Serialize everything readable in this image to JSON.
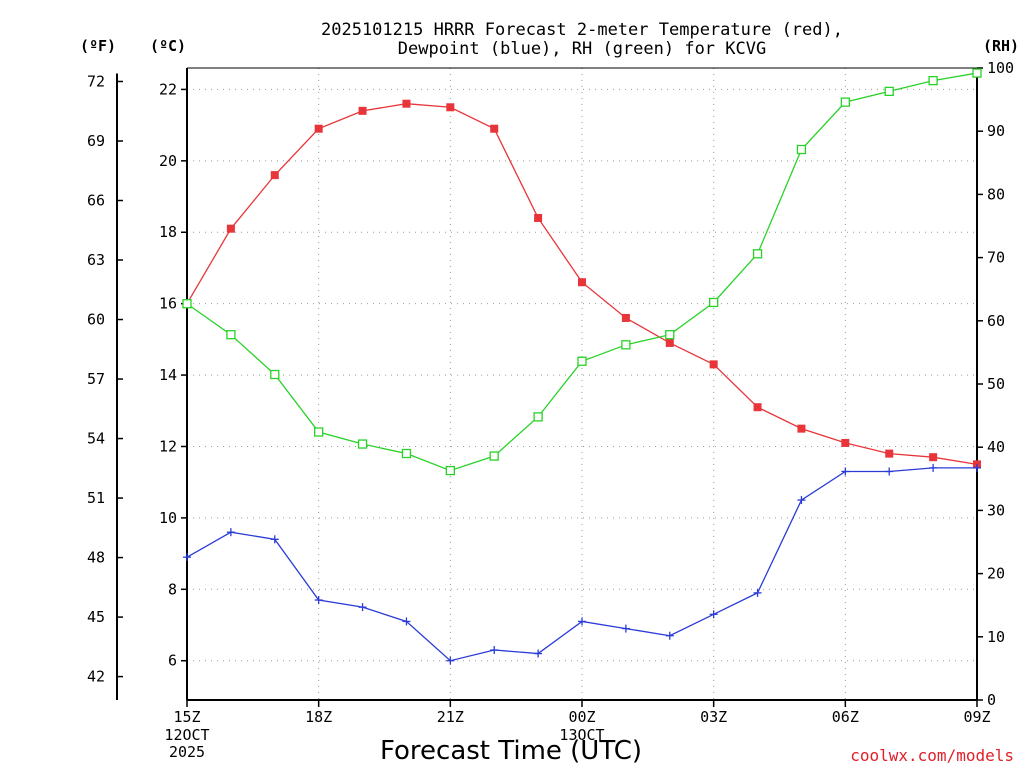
{
  "chart_data": {
    "type": "line",
    "title": [
      "2025101215 HRRR Forecast 2-meter Temperature (red),",
      "Dewpoint (blue), RH (green) for KCVG"
    ],
    "xlabel": "Forecast Time (UTC)",
    "credit": "coolwx.com/models",
    "units": {
      "fahrenheit": "(ºF)",
      "celsius": "(ºC)",
      "rh": "(RH)"
    },
    "x_ticks": [
      {
        "hour": 0,
        "label": "15Z",
        "sub": [
          "12OCT",
          "2025"
        ]
      },
      {
        "hour": 3,
        "label": "18Z",
        "sub": []
      },
      {
        "hour": 6,
        "label": "21Z",
        "sub": []
      },
      {
        "hour": 9,
        "label": "00Z",
        "sub": [
          "13OCT"
        ]
      },
      {
        "hour": 12,
        "label": "03Z",
        "sub": []
      },
      {
        "hour": 15,
        "label": "06Z",
        "sub": []
      },
      {
        "hour": 18,
        "label": "09Z",
        "sub": []
      }
    ],
    "xlim": [
      0,
      18
    ],
    "celsius_ticks": [
      6,
      8,
      10,
      12,
      14,
      16,
      18,
      20,
      22
    ],
    "fahrenheit_ticks": [
      42,
      45,
      48,
      51,
      54,
      57,
      60,
      63,
      66,
      69,
      72
    ],
    "rh_ticks": [
      0,
      10,
      20,
      30,
      40,
      50,
      60,
      70,
      80,
      90,
      100
    ],
    "ylim_celsius": [
      4.9,
      22.6
    ],
    "ylim_rh": [
      0,
      100
    ],
    "series": [
      {
        "name": "Temperature",
        "color": "#e8353a",
        "axis": "celsius",
        "marker": "filled-square",
        "values": [
          16.0,
          18.1,
          19.6,
          20.9,
          21.4,
          21.6,
          21.5,
          20.9,
          18.4,
          16.6,
          15.6,
          14.9,
          14.3,
          13.1,
          12.5,
          12.1,
          11.8,
          11.7,
          11.5
        ]
      },
      {
        "name": "Dewpoint",
        "color": "#2a3bd8",
        "axis": "celsius",
        "marker": "plus",
        "values": [
          8.9,
          9.6,
          9.4,
          7.7,
          7.5,
          7.1,
          6.0,
          6.3,
          6.2,
          7.1,
          6.9,
          6.7,
          7.3,
          7.9,
          10.5,
          11.3,
          11.3,
          11.4,
          11.4
        ]
      },
      {
        "name": "RH",
        "color": "#28d228",
        "axis": "rh",
        "marker": "open-square",
        "values": [
          62.7,
          57.8,
          51.5,
          42.4,
          40.5,
          39.0,
          36.3,
          38.6,
          44.8,
          53.6,
          56.2,
          57.8,
          62.9,
          70.6,
          87.1,
          94.6,
          96.3,
          98.0,
          99.2
        ]
      }
    ]
  }
}
